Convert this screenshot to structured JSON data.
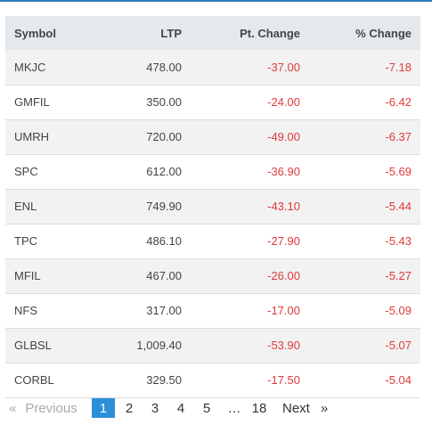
{
  "table": {
    "headers": {
      "symbol": "Symbol",
      "ltp": "LTP",
      "pt_change": "Pt. Change",
      "pct_change": "% Change"
    },
    "rows": [
      {
        "symbol": "MKJC",
        "ltp": "478.00",
        "pt_change": "-37.00",
        "pct_change": "-7.18"
      },
      {
        "symbol": "GMFIL",
        "ltp": "350.00",
        "pt_change": "-24.00",
        "pct_change": "-6.42"
      },
      {
        "symbol": "UMRH",
        "ltp": "720.00",
        "pt_change": "-49.00",
        "pct_change": "-6.37"
      },
      {
        "symbol": "SPC",
        "ltp": "612.00",
        "pt_change": "-36.90",
        "pct_change": "-5.69"
      },
      {
        "symbol": "ENL",
        "ltp": "749.90",
        "pt_change": "-43.10",
        "pct_change": "-5.44"
      },
      {
        "symbol": "TPC",
        "ltp": "486.10",
        "pt_change": "-27.90",
        "pct_change": "-5.43"
      },
      {
        "symbol": "MFIL",
        "ltp": "467.00",
        "pt_change": "-26.00",
        "pct_change": "-5.27"
      },
      {
        "symbol": "NFS",
        "ltp": "317.00",
        "pt_change": "-17.00",
        "pct_change": "-5.09"
      },
      {
        "symbol": "GLBSL",
        "ltp": "1,009.40",
        "pt_change": "-53.90",
        "pct_change": "-5.07"
      },
      {
        "symbol": "CORBL",
        "ltp": "329.50",
        "pt_change": "-17.50",
        "pct_change": "-5.04"
      }
    ]
  },
  "pagination": {
    "prev_arrow": "«",
    "prev_label": "Previous",
    "pages": [
      "1",
      "2",
      "3",
      "4",
      "5"
    ],
    "ellipsis": "…",
    "last_page": "18",
    "next_label": "Next",
    "next_arrow": "»",
    "active_page": "1"
  },
  "colors": {
    "accent": "#2b8fd9",
    "negative": "#e03a3a",
    "header_bg": "#e5e9ec",
    "stripe": "#f2f2f2"
  }
}
